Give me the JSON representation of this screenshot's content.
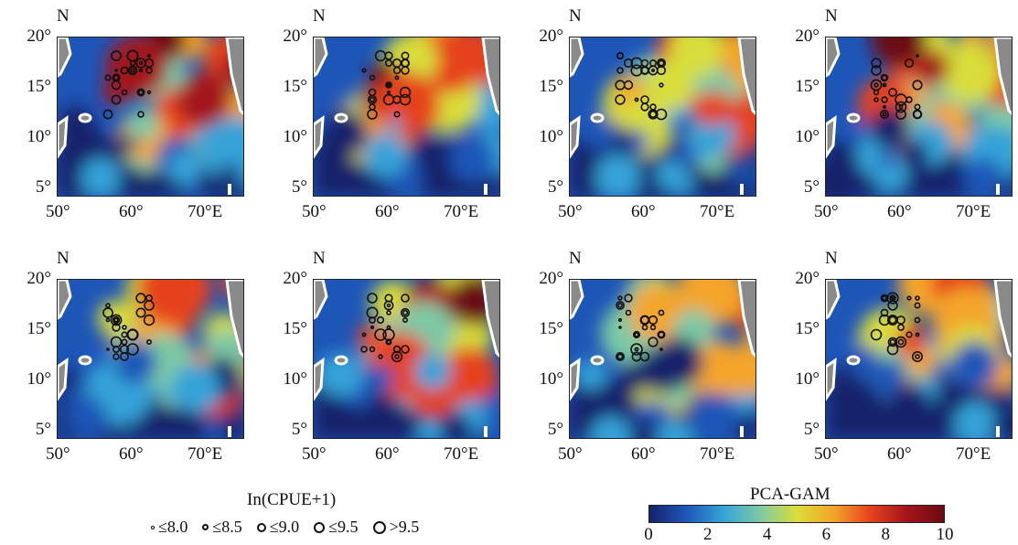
{
  "panels": [
    {
      "north": "N",
      "y_ticks": [
        "20°",
        "15°",
        "10°",
        "5°"
      ],
      "x_ticks": [
        "50°",
        "60°",
        "70°E"
      ]
    },
    {
      "north": "N",
      "y_ticks": [
        "20°",
        "15°",
        "10°",
        "5°"
      ],
      "x_ticks": [
        "50°",
        "60°",
        "70°E"
      ]
    },
    {
      "north": "N",
      "y_ticks": [
        "20°",
        "15°",
        "10°",
        "5°"
      ],
      "x_ticks": [
        "50°",
        "60°",
        "70°E"
      ]
    },
    {
      "north": "N",
      "y_ticks": [
        "20°",
        "15°",
        "10°",
        "5°"
      ],
      "x_ticks": [
        "50°",
        "60°",
        "70°E"
      ]
    },
    {
      "north": "N",
      "y_ticks": [
        "20°",
        "15°",
        "10°",
        "5°"
      ],
      "x_ticks": [
        "50°",
        "60°",
        "70°E"
      ]
    },
    {
      "north": "N",
      "y_ticks": [
        "20°",
        "15°",
        "10°",
        "5°"
      ],
      "x_ticks": [
        "50°",
        "60°",
        "70°E"
      ]
    },
    {
      "north": "N",
      "y_ticks": [
        "20°",
        "15°",
        "10°",
        "5°"
      ],
      "x_ticks": [
        "50°",
        "60°",
        "70°E"
      ]
    },
    {
      "north": "N",
      "y_ticks": [
        "20°",
        "15°",
        "10°",
        "5°"
      ],
      "x_ticks": [
        "50°",
        "60°",
        "70°E"
      ]
    }
  ],
  "legend": {
    "title": "In(CPUE+1)",
    "items": [
      "≤8.0",
      "≤8.5",
      "≤9.0",
      "≤9.5",
      ">9.5"
    ]
  },
  "colorbar": {
    "title": "PCA-GAM",
    "ticks": [
      "0",
      "2",
      "4",
      "6",
      "8",
      "10"
    ],
    "colors": [
      "#15226b",
      "#1e56b8",
      "#35a3d8",
      "#7cc9a6",
      "#d8de3b",
      "#f4a52a",
      "#e5431d",
      "#a3141a",
      "#6b0c12"
    ]
  }
}
